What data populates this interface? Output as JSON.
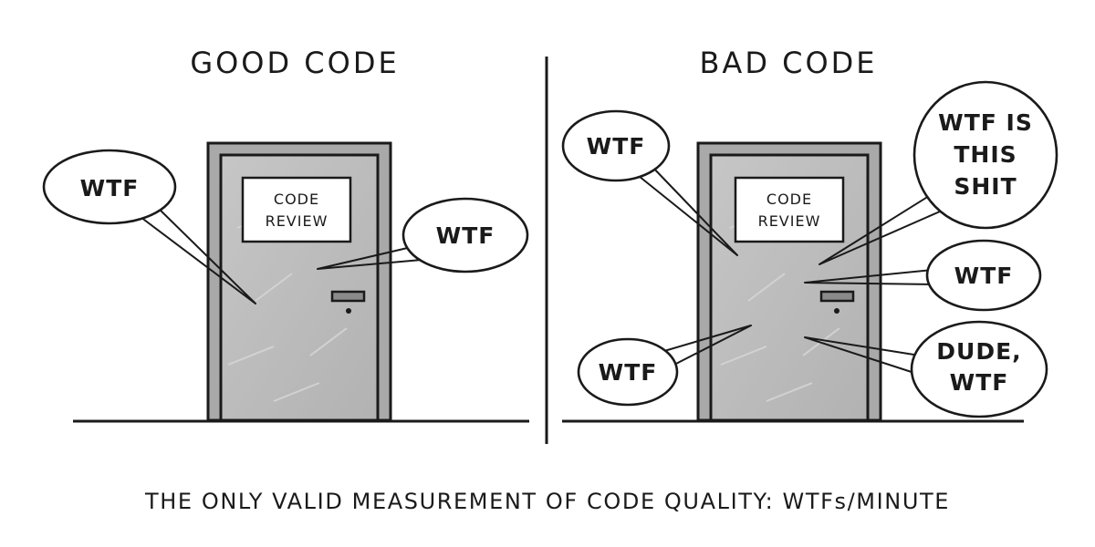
{
  "panels": {
    "good": {
      "title": "GOOD CODE",
      "sign_line1": "CODE",
      "sign_line2": "REVIEW",
      "bubbles": [
        "WTF",
        "WTF"
      ]
    },
    "bad": {
      "title": "BAD CODE",
      "sign_line1": "CODE",
      "sign_line2": "REVIEW",
      "bubbles": {
        "top_left": "WTF",
        "top_right_line1": "WTF IS",
        "top_right_line2": "THIS",
        "top_right_line3": "SHIT",
        "middle_right": "WTF",
        "bottom_left": "WTF",
        "bottom_right_line1": "DUDE,",
        "bottom_right_line2": "WTF"
      }
    }
  },
  "caption": "THE ONLY VALID MEASUREMENT OF CODE QUALITY: WTFs/MINUTE",
  "colors": {
    "door_fill": "#bdbdbd",
    "frame_fill": "#a8a8a8",
    "ink": "#1a1a1a",
    "background": "#ffffff"
  }
}
